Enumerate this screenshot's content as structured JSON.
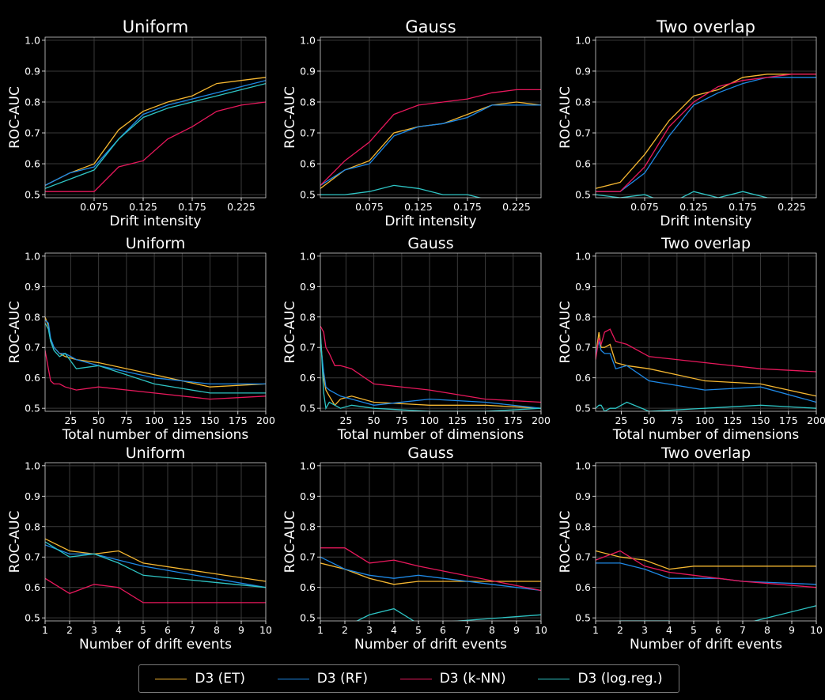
{
  "colors": {
    "ET": "#f5b731",
    "RF": "#1e88e5",
    "kNN": "#e8185c",
    "LR": "#2ec4c4"
  },
  "legend": [
    {
      "key": "ET",
      "label": "D3 (ET)"
    },
    {
      "key": "RF",
      "label": "D3 (RF)"
    },
    {
      "key": "kNN",
      "label": "D3 (k-NN)"
    },
    {
      "key": "LR",
      "label": "D3 (log.reg.)"
    }
  ],
  "chart_data": [
    {
      "type": "line",
      "title": "Uniform",
      "xlabel": "Drift intensity",
      "ylabel": "ROC-AUC",
      "xlim": [
        0.025,
        0.25
      ],
      "ylim": [
        0.49,
        1.01
      ],
      "xticks": [
        0.075,
        0.125,
        0.175,
        0.225
      ],
      "xticklabels": [
        "0.075",
        "0.125",
        "0.175",
        "0.225"
      ],
      "yticks": [
        0.5,
        0.6,
        0.7,
        0.8,
        0.9,
        1.0
      ],
      "yticklabels": [
        "0.5",
        "0.6",
        "0.7",
        "0.8",
        "0.9",
        "1.0"
      ],
      "x": [
        0.025,
        0.05,
        0.075,
        0.1,
        0.125,
        0.15,
        0.175,
        0.2,
        0.225,
        0.25
      ],
      "series": [
        {
          "key": "ET",
          "values": [
            0.53,
            0.57,
            0.6,
            0.71,
            0.77,
            0.8,
            0.82,
            0.86,
            0.87,
            0.88
          ]
        },
        {
          "key": "RF",
          "values": [
            0.53,
            0.57,
            0.59,
            0.68,
            0.76,
            0.79,
            0.81,
            0.83,
            0.85,
            0.87
          ]
        },
        {
          "key": "kNN",
          "values": [
            0.51,
            0.51,
            0.51,
            0.59,
            0.61,
            0.68,
            0.72,
            0.77,
            0.79,
            0.8
          ]
        },
        {
          "key": "LR",
          "values": [
            0.52,
            0.55,
            0.58,
            0.68,
            0.75,
            0.78,
            0.8,
            0.82,
            0.84,
            0.86
          ]
        }
      ]
    },
    {
      "type": "line",
      "title": "Gauss",
      "xlabel": "Drift intensity",
      "ylabel": "ROC-AUC",
      "xlim": [
        0.025,
        0.25
      ],
      "ylim": [
        0.49,
        1.01
      ],
      "xticks": [
        0.075,
        0.125,
        0.175,
        0.225
      ],
      "xticklabels": [
        "0.075",
        "0.125",
        "0.175",
        "0.225"
      ],
      "yticks": [
        0.5,
        0.6,
        0.7,
        0.8,
        0.9,
        1.0
      ],
      "yticklabels": [
        "0.5",
        "0.6",
        "0.7",
        "0.8",
        "0.9",
        "1.0"
      ],
      "x": [
        0.025,
        0.05,
        0.075,
        0.1,
        0.125,
        0.15,
        0.175,
        0.2,
        0.225,
        0.25
      ],
      "series": [
        {
          "key": "ET",
          "values": [
            0.52,
            0.58,
            0.61,
            0.7,
            0.72,
            0.73,
            0.76,
            0.79,
            0.8,
            0.79
          ]
        },
        {
          "key": "RF",
          "values": [
            0.53,
            0.58,
            0.6,
            0.69,
            0.72,
            0.73,
            0.75,
            0.79,
            0.79,
            0.79
          ]
        },
        {
          "key": "kNN",
          "values": [
            0.53,
            0.61,
            0.67,
            0.76,
            0.79,
            0.8,
            0.81,
            0.83,
            0.84,
            0.84
          ]
        },
        {
          "key": "LR",
          "values": [
            0.5,
            0.5,
            0.51,
            0.53,
            0.52,
            0.5,
            0.5,
            0.48,
            0.47,
            0.47
          ]
        }
      ]
    },
    {
      "type": "line",
      "title": "Two overlap",
      "xlabel": "Drift intensity",
      "ylabel": "ROC-AUC",
      "xlim": [
        0.025,
        0.25
      ],
      "ylim": [
        0.49,
        1.01
      ],
      "xticks": [
        0.075,
        0.125,
        0.175,
        0.225
      ],
      "xticklabels": [
        "0.075",
        "0.125",
        "0.175",
        "0.225"
      ],
      "yticks": [
        0.5,
        0.6,
        0.7,
        0.8,
        0.9,
        1.0
      ],
      "yticklabels": [
        "0.5",
        "0.6",
        "0.7",
        "0.8",
        "0.9",
        "1.0"
      ],
      "x": [
        0.025,
        0.05,
        0.075,
        0.1,
        0.125,
        0.15,
        0.175,
        0.2,
        0.225,
        0.25
      ],
      "series": [
        {
          "key": "ET",
          "values": [
            0.52,
            0.54,
            0.63,
            0.74,
            0.82,
            0.84,
            0.88,
            0.89,
            0.89,
            0.89
          ]
        },
        {
          "key": "RF",
          "values": [
            0.51,
            0.51,
            0.57,
            0.69,
            0.79,
            0.83,
            0.86,
            0.88,
            0.88,
            0.88
          ]
        },
        {
          "key": "kNN",
          "values": [
            0.51,
            0.51,
            0.59,
            0.72,
            0.8,
            0.85,
            0.87,
            0.88,
            0.89,
            0.89
          ]
        },
        {
          "key": "LR",
          "values": [
            0.5,
            0.49,
            0.5,
            0.47,
            0.51,
            0.49,
            0.51,
            0.49,
            0.48,
            0.48
          ]
        }
      ]
    },
    {
      "type": "line",
      "title": "Uniform",
      "xlabel": "Total number of dimensions",
      "ylabel": "ROC-AUC",
      "xlim": [
        2,
        200
      ],
      "ylim": [
        0.49,
        1.01
      ],
      "xticks": [
        25,
        50,
        75,
        100,
        125,
        150,
        175,
        200
      ],
      "xticklabels": [
        "25",
        "50",
        "75",
        "100",
        "125",
        "150",
        "175",
        "200"
      ],
      "yticks": [
        0.5,
        0.6,
        0.7,
        0.8,
        0.9,
        1.0
      ],
      "yticklabels": [
        "0.5",
        "0.6",
        "0.7",
        "0.8",
        "0.9",
        "1.0"
      ],
      "x": [
        2,
        5,
        7,
        10,
        15,
        20,
        30,
        50,
        100,
        150,
        200
      ],
      "series": [
        {
          "key": "ET",
          "values": [
            0.8,
            0.77,
            0.72,
            0.7,
            0.68,
            0.67,
            0.66,
            0.65,
            0.61,
            0.57,
            0.58
          ]
        },
        {
          "key": "RF",
          "values": [
            0.79,
            0.78,
            0.73,
            0.7,
            0.68,
            0.68,
            0.66,
            0.64,
            0.6,
            0.58,
            0.58
          ]
        },
        {
          "key": "kNN",
          "values": [
            0.69,
            0.63,
            0.59,
            0.58,
            0.58,
            0.57,
            0.56,
            0.57,
            0.55,
            0.53,
            0.54
          ]
        },
        {
          "key": "LR",
          "values": [
            0.78,
            0.76,
            0.72,
            0.69,
            0.67,
            0.68,
            0.63,
            0.64,
            0.58,
            0.55,
            0.55
          ]
        }
      ]
    },
    {
      "type": "line",
      "title": "Gauss",
      "xlabel": "Total number of dimensions",
      "ylabel": "ROC-AUC",
      "xlim": [
        2,
        200
      ],
      "ylim": [
        0.49,
        1.01
      ],
      "xticks": [
        25,
        50,
        75,
        100,
        125,
        150,
        175,
        200
      ],
      "xticklabels": [
        "25",
        "50",
        "75",
        "100",
        "125",
        "150",
        "175",
        "200"
      ],
      "yticks": [
        0.5,
        0.6,
        0.7,
        0.8,
        0.9,
        1.0
      ],
      "yticklabels": [
        "0.5",
        "0.6",
        "0.7",
        "0.8",
        "0.9",
        "1.0"
      ],
      "x": [
        2,
        5,
        7,
        10,
        15,
        20,
        30,
        50,
        100,
        150,
        200
      ],
      "series": [
        {
          "key": "ET",
          "values": [
            0.74,
            0.6,
            0.56,
            0.54,
            0.51,
            0.53,
            0.54,
            0.52,
            0.51,
            0.51,
            0.5
          ]
        },
        {
          "key": "RF",
          "values": [
            0.72,
            0.62,
            0.57,
            0.56,
            0.55,
            0.54,
            0.53,
            0.51,
            0.53,
            0.52,
            0.5
          ]
        },
        {
          "key": "kNN",
          "values": [
            0.77,
            0.75,
            0.7,
            0.68,
            0.64,
            0.64,
            0.63,
            0.58,
            0.56,
            0.53,
            0.52
          ]
        },
        {
          "key": "LR",
          "values": [
            0.76,
            0.55,
            0.5,
            0.52,
            0.51,
            0.5,
            0.51,
            0.5,
            0.49,
            0.49,
            0.5
          ]
        }
      ]
    },
    {
      "type": "line",
      "title": "Two overlap",
      "xlabel": "Total number of dimensions",
      "ylabel": "ROC-AUC",
      "xlim": [
        2,
        200
      ],
      "ylim": [
        0.49,
        1.01
      ],
      "xticks": [
        25,
        50,
        75,
        100,
        125,
        150,
        175,
        200
      ],
      "xticklabels": [
        "25",
        "50",
        "75",
        "100",
        "125",
        "150",
        "175",
        "200"
      ],
      "yticks": [
        0.5,
        0.6,
        0.7,
        0.8,
        0.9,
        1.0
      ],
      "yticklabels": [
        "0.5",
        "0.6",
        "0.7",
        "0.8",
        "0.9",
        "1.0"
      ],
      "x": [
        2,
        5,
        7,
        10,
        15,
        20,
        30,
        50,
        100,
        150,
        200
      ],
      "series": [
        {
          "key": "ET",
          "values": [
            0.67,
            0.75,
            0.7,
            0.7,
            0.71,
            0.65,
            0.64,
            0.63,
            0.59,
            0.58,
            0.54
          ]
        },
        {
          "key": "RF",
          "values": [
            0.68,
            0.72,
            0.69,
            0.68,
            0.68,
            0.63,
            0.64,
            0.59,
            0.56,
            0.57,
            0.52
          ]
        },
        {
          "key": "kNN",
          "values": [
            0.66,
            0.73,
            0.71,
            0.75,
            0.76,
            0.72,
            0.71,
            0.67,
            0.65,
            0.63,
            0.62
          ]
        },
        {
          "key": "LR",
          "values": [
            0.5,
            0.51,
            0.51,
            0.49,
            0.5,
            0.5,
            0.52,
            0.49,
            0.5,
            0.51,
            0.5
          ]
        }
      ]
    },
    {
      "type": "line",
      "title": "Uniform",
      "xlabel": "Number of drift events",
      "ylabel": "ROC-AUC",
      "xlim": [
        1,
        10
      ],
      "ylim": [
        0.49,
        1.01
      ],
      "xticks": [
        1,
        2,
        3,
        4,
        5,
        6,
        7,
        8,
        9,
        10
      ],
      "xticklabels": [
        "1",
        "2",
        "3",
        "4",
        "5",
        "6",
        "7",
        "8",
        "9",
        "10"
      ],
      "yticks": [
        0.5,
        0.6,
        0.7,
        0.8,
        0.9,
        1.0
      ],
      "yticklabels": [
        "0.5",
        "0.6",
        "0.7",
        "0.8",
        "0.9",
        "1.0"
      ],
      "x": [
        1,
        2,
        3,
        4,
        5,
        10
      ],
      "series": [
        {
          "key": "ET",
          "values": [
            0.76,
            0.72,
            0.71,
            0.72,
            0.68,
            0.62
          ]
        },
        {
          "key": "RF",
          "values": [
            0.74,
            0.71,
            0.71,
            0.69,
            0.67,
            0.6
          ]
        },
        {
          "key": "kNN",
          "values": [
            0.63,
            0.58,
            0.61,
            0.6,
            0.55,
            0.55
          ]
        },
        {
          "key": "LR",
          "values": [
            0.75,
            0.7,
            0.71,
            0.68,
            0.64,
            0.6
          ]
        }
      ]
    },
    {
      "type": "line",
      "title": "Gauss",
      "xlabel": "Number of drift events",
      "ylabel": "ROC-AUC",
      "xlim": [
        1,
        10
      ],
      "ylim": [
        0.49,
        1.01
      ],
      "xticks": [
        1,
        2,
        3,
        4,
        5,
        6,
        7,
        8,
        9,
        10
      ],
      "xticklabels": [
        "1",
        "2",
        "3",
        "4",
        "5",
        "6",
        "7",
        "8",
        "9",
        "10"
      ],
      "yticks": [
        0.5,
        0.6,
        0.7,
        0.8,
        0.9,
        1.0
      ],
      "yticklabels": [
        "0.5",
        "0.6",
        "0.7",
        "0.8",
        "0.9",
        "1.0"
      ],
      "x": [
        1,
        2,
        3,
        4,
        5,
        10
      ],
      "series": [
        {
          "key": "ET",
          "values": [
            0.68,
            0.66,
            0.63,
            0.61,
            0.62,
            0.62
          ]
        },
        {
          "key": "RF",
          "values": [
            0.7,
            0.66,
            0.64,
            0.63,
            0.64,
            0.59
          ]
        },
        {
          "key": "kNN",
          "values": [
            0.73,
            0.73,
            0.68,
            0.69,
            0.67,
            0.59
          ]
        },
        {
          "key": "LR",
          "values": [
            0.49,
            0.47,
            0.51,
            0.53,
            0.48,
            0.51
          ]
        }
      ]
    },
    {
      "type": "line",
      "title": "Two overlap",
      "xlabel": "Number of drift events",
      "ylabel": "ROC-AUC",
      "xlim": [
        1,
        10
      ],
      "ylim": [
        0.49,
        1.01
      ],
      "xticks": [
        1,
        2,
        3,
        4,
        5,
        6,
        7,
        8,
        9,
        10
      ],
      "xticklabels": [
        "1",
        "2",
        "3",
        "4",
        "5",
        "6",
        "7",
        "8",
        "9",
        "10"
      ],
      "yticks": [
        0.5,
        0.6,
        0.7,
        0.8,
        0.9,
        1.0
      ],
      "yticklabels": [
        "0.5",
        "0.6",
        "0.7",
        "0.8",
        "0.9",
        "1.0"
      ],
      "x": [
        1,
        2,
        3,
        4,
        5,
        6,
        7,
        10
      ],
      "series": [
        {
          "key": "ET",
          "values": [
            0.72,
            0.7,
            0.69,
            0.66,
            0.67,
            0.67,
            0.67,
            0.67
          ]
        },
        {
          "key": "RF",
          "values": [
            0.68,
            0.68,
            0.66,
            0.63,
            0.63,
            0.63,
            0.62,
            0.61
          ]
        },
        {
          "key": "kNN",
          "values": [
            0.69,
            0.72,
            0.67,
            0.65,
            0.64,
            0.63,
            0.62,
            0.6
          ]
        },
        {
          "key": "LR",
          "values": [
            0.48,
            0.49,
            0.49,
            0.49,
            0.47,
            0.47,
            0.48,
            0.54
          ]
        }
      ]
    }
  ]
}
